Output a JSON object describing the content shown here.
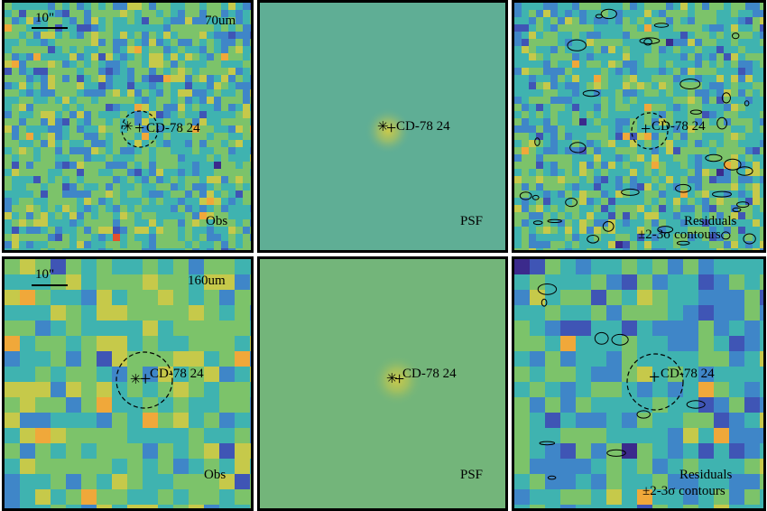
{
  "target_name": "CD-78 24",
  "top_row": {
    "obs": {
      "scale_label": "10\"",
      "wavelength_label": "70um",
      "panel_label": "Obs"
    },
    "psf": {
      "panel_label": "PSF"
    },
    "residuals": {
      "panel_label_1": "Residuals",
      "panel_label_2": "±2-3σ contours"
    }
  },
  "bottom_row": {
    "obs": {
      "scale_label": "10\"",
      "wavelength_label": "160um",
      "panel_label": "Obs"
    },
    "psf": {
      "panel_label": "PSF"
    },
    "residuals": {
      "panel_label_1": "Residuals",
      "panel_label_2": "±2-3σ contours"
    }
  },
  "markers": {
    "star_glyph": "✳",
    "cross_glyph": "+"
  },
  "colors": {
    "frame": "#000000",
    "psf_top_bg": "#5fae95",
    "psf_bottom_bg": "#73b57a",
    "psf_core": "#c9c94a",
    "colormap": [
      "#3b2a8c",
      "#3f55b5",
      "#3f86c8",
      "#3fb3b0",
      "#7cc36a",
      "#c6c94a",
      "#f0a83a",
      "#e4502c"
    ]
  }
}
